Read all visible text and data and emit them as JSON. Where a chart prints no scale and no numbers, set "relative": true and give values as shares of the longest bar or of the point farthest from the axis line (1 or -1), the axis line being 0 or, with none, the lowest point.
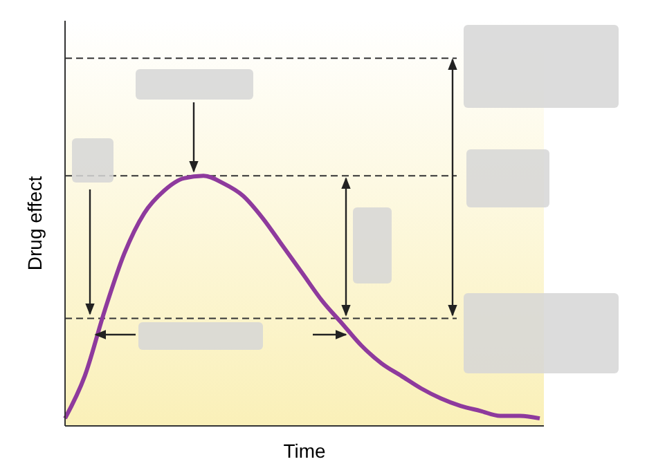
{
  "chart_data": {
    "type": "line",
    "relative": true,
    "xlabel": "Time",
    "ylabel": "Drug effect",
    "categories": [
      null,
      null,
      null,
      null,
      null,
      null,
      null,
      null,
      null,
      null,
      null,
      null,
      null,
      null,
      null,
      null,
      null,
      null,
      null,
      null,
      null,
      null,
      null,
      null,
      null
    ],
    "series": [
      {
        "color": "#8e3a9d",
        "values": [
          0.03,
          0.2,
          0.46,
          0.69,
          0.85,
          0.94,
          0.99,
          1,
          0.97,
          0.92,
          0.83,
          0.72,
          0.61,
          0.5,
          0.41,
          0.32,
          0.25,
          0.2,
          0.15,
          0.11,
          0.08,
          0.06,
          0.04,
          0.04,
          0.03
        ]
      }
    ],
    "ref_lines": [
      {
        "axis": "y",
        "value": 1.47,
        "line_style": "dashed",
        "color": "#333333"
      },
      {
        "axis": "y",
        "value": 1,
        "line_style": "dashed",
        "color": "#333333"
      },
      {
        "axis": "y",
        "value": 0.43,
        "line_style": "dashed",
        "color": "#333333"
      }
    ],
    "marker": "none",
    "line_style": "solid"
  }
}
